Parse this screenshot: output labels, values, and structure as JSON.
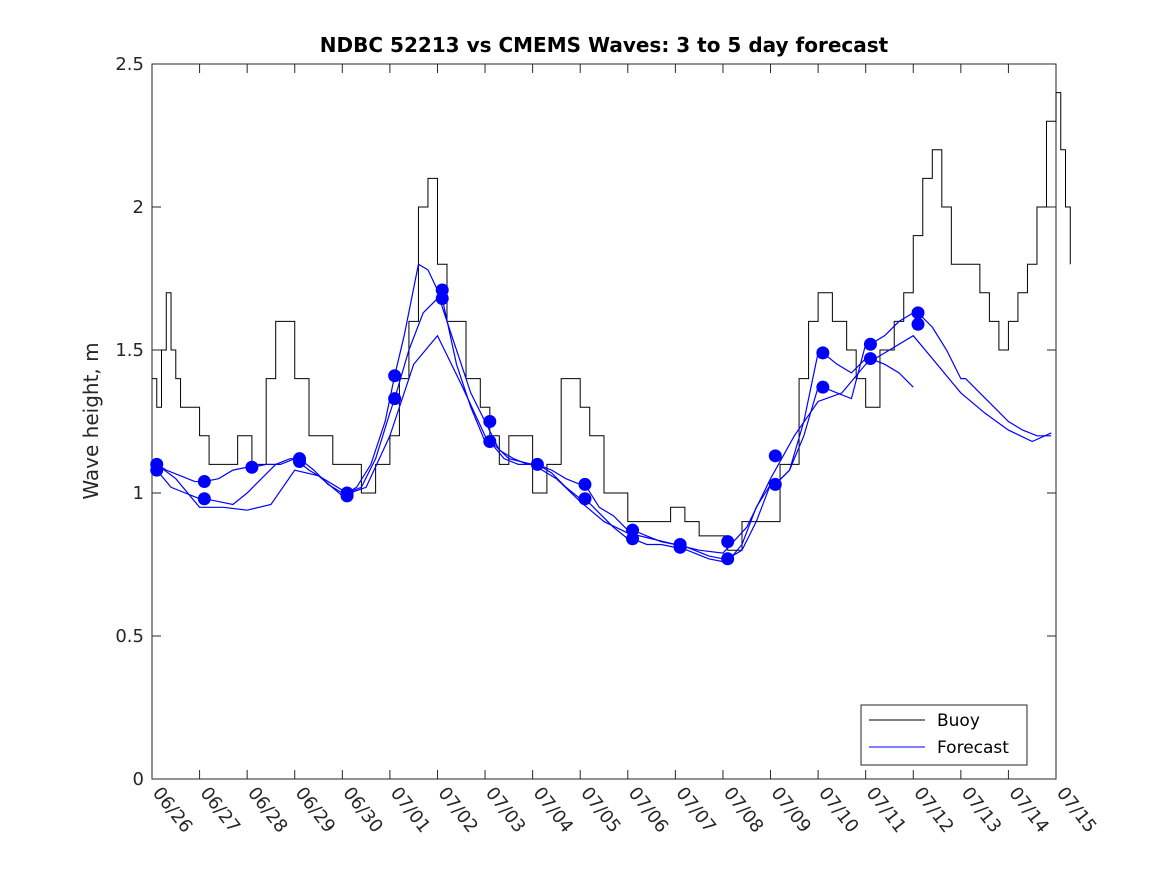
{
  "chart_data": {
    "type": "line",
    "title": "NDBC 52213 vs CMEMS Waves: 3 to 5 day forecast",
    "xlabel": "",
    "ylabel": "Wave height, m",
    "xlim": [
      0,
      19
    ],
    "ylim": [
      0,
      2.5
    ],
    "x_tick_labels": [
      "06/26",
      "06/27",
      "06/28",
      "06/29",
      "06/30",
      "07/01",
      "07/02",
      "07/03",
      "07/04",
      "07/05",
      "07/06",
      "07/07",
      "07/08",
      "07/09",
      "07/10",
      "07/11",
      "07/12",
      "07/13",
      "07/14",
      "07/15"
    ],
    "y_ticks": [
      0,
      0.5,
      1,
      1.5,
      2,
      2.5
    ],
    "y_tick_labels": [
      "0",
      "0.5",
      "1",
      "1.5",
      "2",
      "2.5"
    ],
    "grid": false,
    "legend": {
      "position": "bottom-right",
      "entries": [
        "Buoy",
        "Forecast"
      ]
    },
    "colors": {
      "buoy": "#000000",
      "forecast": "#0000ff"
    },
    "buoy": {
      "name": "Buoy",
      "x": [
        0,
        0.1,
        0.2,
        0.3,
        0.4,
        0.5,
        0.6,
        0.8,
        1.0,
        1.2,
        1.5,
        1.8,
        2.1,
        2.4,
        2.6,
        2.8,
        3.0,
        3.3,
        3.5,
        3.8,
        4.1,
        4.4,
        4.7,
        5.0,
        5.2,
        5.4,
        5.6,
        5.8,
        6.0,
        6.2,
        6.4,
        6.6,
        6.9,
        7.1,
        7.3,
        7.5,
        7.8,
        8.0,
        8.3,
        8.6,
        8.8,
        9.0,
        9.2,
        9.5,
        9.7,
        10.0,
        10.3,
        10.6,
        10.9,
        11.2,
        11.5,
        11.8,
        12.1,
        12.4,
        12.7,
        13.0,
        13.2,
        13.4,
        13.6,
        13.8,
        14.0,
        14.3,
        14.6,
        14.8,
        15.0,
        15.3,
        15.6,
        15.8,
        16.0,
        16.2,
        16.4,
        16.6,
        16.8,
        17.0,
        17.2,
        17.4,
        17.6,
        17.8,
        18.0,
        18.2,
        18.4,
        18.6,
        18.8,
        19.0,
        19.1,
        19.2,
        19.3
      ],
      "y": [
        1.4,
        1.3,
        1.5,
        1.7,
        1.5,
        1.4,
        1.3,
        1.3,
        1.2,
        1.1,
        1.1,
        1.2,
        1.1,
        1.4,
        1.6,
        1.6,
        1.4,
        1.2,
        1.2,
        1.1,
        1.1,
        1.0,
        1.1,
        1.2,
        1.4,
        1.6,
        2.0,
        2.1,
        1.8,
        1.6,
        1.6,
        1.4,
        1.3,
        1.2,
        1.1,
        1.2,
        1.2,
        1.0,
        1.1,
        1.4,
        1.4,
        1.3,
        1.2,
        1.0,
        1.0,
        0.9,
        0.9,
        0.9,
        0.95,
        0.9,
        0.85,
        0.85,
        0.8,
        0.9,
        0.9,
        0.9,
        1.1,
        1.1,
        1.4,
        1.6,
        1.7,
        1.6,
        1.5,
        1.4,
        1.3,
        1.5,
        1.6,
        1.7,
        1.9,
        2.1,
        2.2,
        2.0,
        1.8,
        1.8,
        1.8,
        1.7,
        1.6,
        1.5,
        1.6,
        1.7,
        1.8,
        2.0,
        2.3,
        2.4,
        2.2,
        2.0,
        1.8
      ]
    },
    "forecast": {
      "name": "Forecast",
      "runs": [
        {
          "x": [
            0.1,
            0.3,
            0.6,
            0.9,
            1.1,
            1.4,
            1.7,
            2.0,
            2.1,
            2.4,
            2.7,
            3.0,
            3.3,
            3.6,
            3.9,
            4.1,
            4.3,
            4.6,
            4.9,
            5.1,
            5.3,
            5.6,
            5.8,
            6.0,
            6.1,
            6.4,
            6.7,
            7.0,
            7.3,
            7.6,
            7.9,
            8.1,
            8.4,
            8.7,
            9.0,
            9.1,
            9.4,
            9.7,
            10.0,
            10.1,
            10.4,
            10.7,
            11.0,
            11.1,
            11.4,
            11.7,
            12.0,
            12.1,
            12.4,
            12.7,
            13.0,
            13.1,
            13.4,
            13.7,
            14.0,
            14.1,
            14.4,
            14.7,
            15.0,
            15.1,
            15.4,
            15.7,
            16.0,
            16.1,
            16.4,
            16.7,
            17.0,
            17.1,
            17.4,
            17.7,
            18.0,
            18.3,
            18.6,
            18.9
          ],
          "y": [
            1.1,
            1.08,
            1.06,
            1.04,
            1.04,
            1.05,
            1.08,
            1.09,
            1.09,
            1.1,
            1.1,
            1.12,
            1.08,
            1.05,
            1.02,
            1.0,
            1.02,
            1.1,
            1.25,
            1.41,
            1.55,
            1.8,
            1.78,
            1.71,
            1.65,
            1.5,
            1.35,
            1.25,
            1.15,
            1.12,
            1.1,
            1.1,
            1.08,
            1.05,
            1.03,
            1.03,
            0.95,
            0.92,
            0.87,
            0.87,
            0.85,
            0.83,
            0.82,
            0.82,
            0.8,
            0.78,
            0.77,
            0.77,
            0.8,
            0.9,
            1.03,
            1.03,
            1.08,
            1.2,
            1.37,
            1.37,
            1.35,
            1.33,
            1.52,
            1.52,
            1.55,
            1.6,
            1.63,
            1.63,
            1.58,
            1.5,
            1.4,
            1.4,
            1.35,
            1.3,
            1.25,
            1.22,
            1.2,
            1.2
          ]
        },
        {
          "x": [
            0.1,
            0.4,
            0.7,
            1.0,
            1.1,
            1.4,
            1.7,
            2.0,
            2.3,
            2.6,
            2.9,
            3.1,
            3.4,
            3.7,
            4.0,
            4.1,
            4.4,
            4.7,
            5.0,
            5.1,
            5.4,
            5.7,
            6.0,
            6.1,
            6.4,
            6.7,
            7.0,
            7.1,
            7.4,
            7.7,
            8.0,
            8.1,
            8.4,
            8.7,
            9.0,
            9.1,
            9.4,
            9.7,
            10.0,
            10.1,
            10.4,
            10.7,
            11.0,
            11.1,
            11.4,
            11.7,
            12.0,
            12.1,
            12.4,
            12.7,
            13.0,
            13.1,
            13.4,
            13.7,
            14.0,
            14.1,
            14.4,
            14.7,
            15.0,
            15.1,
            15.4,
            15.7,
            16.0
          ],
          "y": [
            1.08,
            1.02,
            1.0,
            0.98,
            0.98,
            0.97,
            0.96,
            1.0,
            1.05,
            1.1,
            1.12,
            1.12,
            1.08,
            1.03,
            1.0,
            1.0,
            1.02,
            1.12,
            1.28,
            1.33,
            1.5,
            1.63,
            1.68,
            1.68,
            1.45,
            1.3,
            1.18,
            1.18,
            1.12,
            1.1,
            1.1,
            1.1,
            1.07,
            1.02,
            0.98,
            0.98,
            0.93,
            0.88,
            0.84,
            0.84,
            0.82,
            0.82,
            0.81,
            0.81,
            0.79,
            0.77,
            0.76,
            0.76,
            0.82,
            0.95,
            1.03,
            1.03,
            1.08,
            1.25,
            1.49,
            1.49,
            1.45,
            1.42,
            1.47,
            1.47,
            1.45,
            1.42,
            1.37
          ]
        },
        {
          "x": [
            0.1,
            0.5,
            1.0,
            1.5,
            2.0,
            2.5,
            3.0,
            3.5,
            4.0,
            4.5,
            5.0,
            5.5,
            6.0,
            6.5,
            7.0,
            7.5,
            8.0,
            8.5,
            9.0,
            9.5,
            10.0,
            10.5,
            11.0,
            11.5,
            12.0,
            12.5,
            13.0,
            13.5,
            14.0,
            14.5,
            15.0,
            15.5,
            16.0,
            16.5,
            17.0,
            17.5,
            18.0,
            18.5,
            18.9
          ],
          "y": [
            1.1,
            1.05,
            0.95,
            0.95,
            0.94,
            0.96,
            1.08,
            1.06,
            0.99,
            1.02,
            1.2,
            1.45,
            1.55,
            1.38,
            1.2,
            1.12,
            1.1,
            1.05,
            0.97,
            0.9,
            0.86,
            0.84,
            0.82,
            0.8,
            0.79,
            0.88,
            1.05,
            1.2,
            1.32,
            1.35,
            1.45,
            1.5,
            1.55,
            1.45,
            1.35,
            1.28,
            1.22,
            1.18,
            1.21
          ]
        }
      ]
    },
    "forecast_markers": {
      "x": [
        0.1,
        0.1,
        1.1,
        1.1,
        2.1,
        3.1,
        3.1,
        4.1,
        4.1,
        5.1,
        5.1,
        6.1,
        6.1,
        7.1,
        7.1,
        8.1,
        9.1,
        9.1,
        10.1,
        10.1,
        11.1,
        11.1,
        12.1,
        12.1,
        13.1,
        13.1,
        14.1,
        14.1,
        15.1,
        15.1,
        16.1,
        16.1
      ],
      "y": [
        1.1,
        1.08,
        1.04,
        0.98,
        1.09,
        1.12,
        1.11,
        1.0,
        0.99,
        1.41,
        1.33,
        1.71,
        1.68,
        1.25,
        1.18,
        1.1,
        1.03,
        0.98,
        0.87,
        0.84,
        0.82,
        0.81,
        0.83,
        0.77,
        1.13,
        1.03,
        1.49,
        1.37,
        1.52,
        1.47,
        1.63,
        1.59
      ]
    }
  }
}
